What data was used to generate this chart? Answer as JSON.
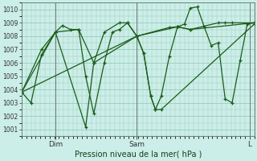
{
  "title": "Pression niveau de la mer( hPa )",
  "bg_color": "#cceee8",
  "grid_color": "#99ccbb",
  "line_color": "#1a5c1a",
  "ylim": [
    1000.5,
    1010.5
  ],
  "yticks": [
    1001,
    1002,
    1003,
    1004,
    1005,
    1006,
    1007,
    1008,
    1009,
    1010
  ],
  "xtick_pos": [
    0.145,
    0.495,
    0.98
  ],
  "xtick_labels": [
    "Dim",
    "Sam",
    "L"
  ],
  "line1": {
    "x": [
      0.0,
      0.04,
      0.085,
      0.145,
      0.175,
      0.21,
      0.245,
      0.275,
      0.31,
      0.355,
      0.39,
      0.42,
      0.455,
      0.495,
      0.525,
      0.555,
      0.575,
      0.6,
      0.635,
      0.67,
      0.7,
      0.725,
      0.755,
      0.785,
      0.815,
      0.845,
      0.875,
      0.905,
      0.94,
      0.97,
      1.0
    ],
    "y": [
      1003.8,
      1003.0,
      1006.6,
      1008.3,
      1008.8,
      1008.5,
      1008.5,
      1005.0,
      1002.2,
      1006.0,
      1008.3,
      1008.5,
      1009.0,
      1008.0,
      1006.7,
      1003.5,
      1002.5,
      1003.5,
      1006.5,
      1008.7,
      1008.9,
      1010.1,
      1010.2,
      1008.7,
      1007.3,
      1007.5,
      1003.3,
      1003.0,
      1006.2,
      1008.9,
      1009.0
    ]
  },
  "line2": {
    "x": [
      0.0,
      0.085,
      0.145,
      0.245,
      0.31,
      0.495,
      0.635,
      0.67,
      0.725,
      0.845,
      0.875,
      0.905,
      1.0
    ],
    "y": [
      1003.8,
      1007.0,
      1008.3,
      1008.5,
      1006.0,
      1008.0,
      1008.65,
      1008.7,
      1008.5,
      1009.0,
      1009.0,
      1009.0,
      1009.0
    ]
  },
  "line3": {
    "x": [
      0.0,
      0.495,
      0.67,
      0.725,
      1.0
    ],
    "y": [
      1003.8,
      1008.0,
      1008.7,
      1008.5,
      1009.0
    ]
  },
  "line4": {
    "x": [
      0.0,
      0.145,
      0.275,
      0.31,
      0.355,
      0.42,
      0.455,
      0.495,
      0.525,
      0.555,
      0.575,
      0.6,
      1.0
    ],
    "y": [
      1003.8,
      1008.3,
      1001.2,
      1006.0,
      1008.3,
      1009.0,
      1009.0,
      1008.0,
      1006.7,
      1003.5,
      1002.5,
      1002.5,
      1008.9
    ]
  }
}
